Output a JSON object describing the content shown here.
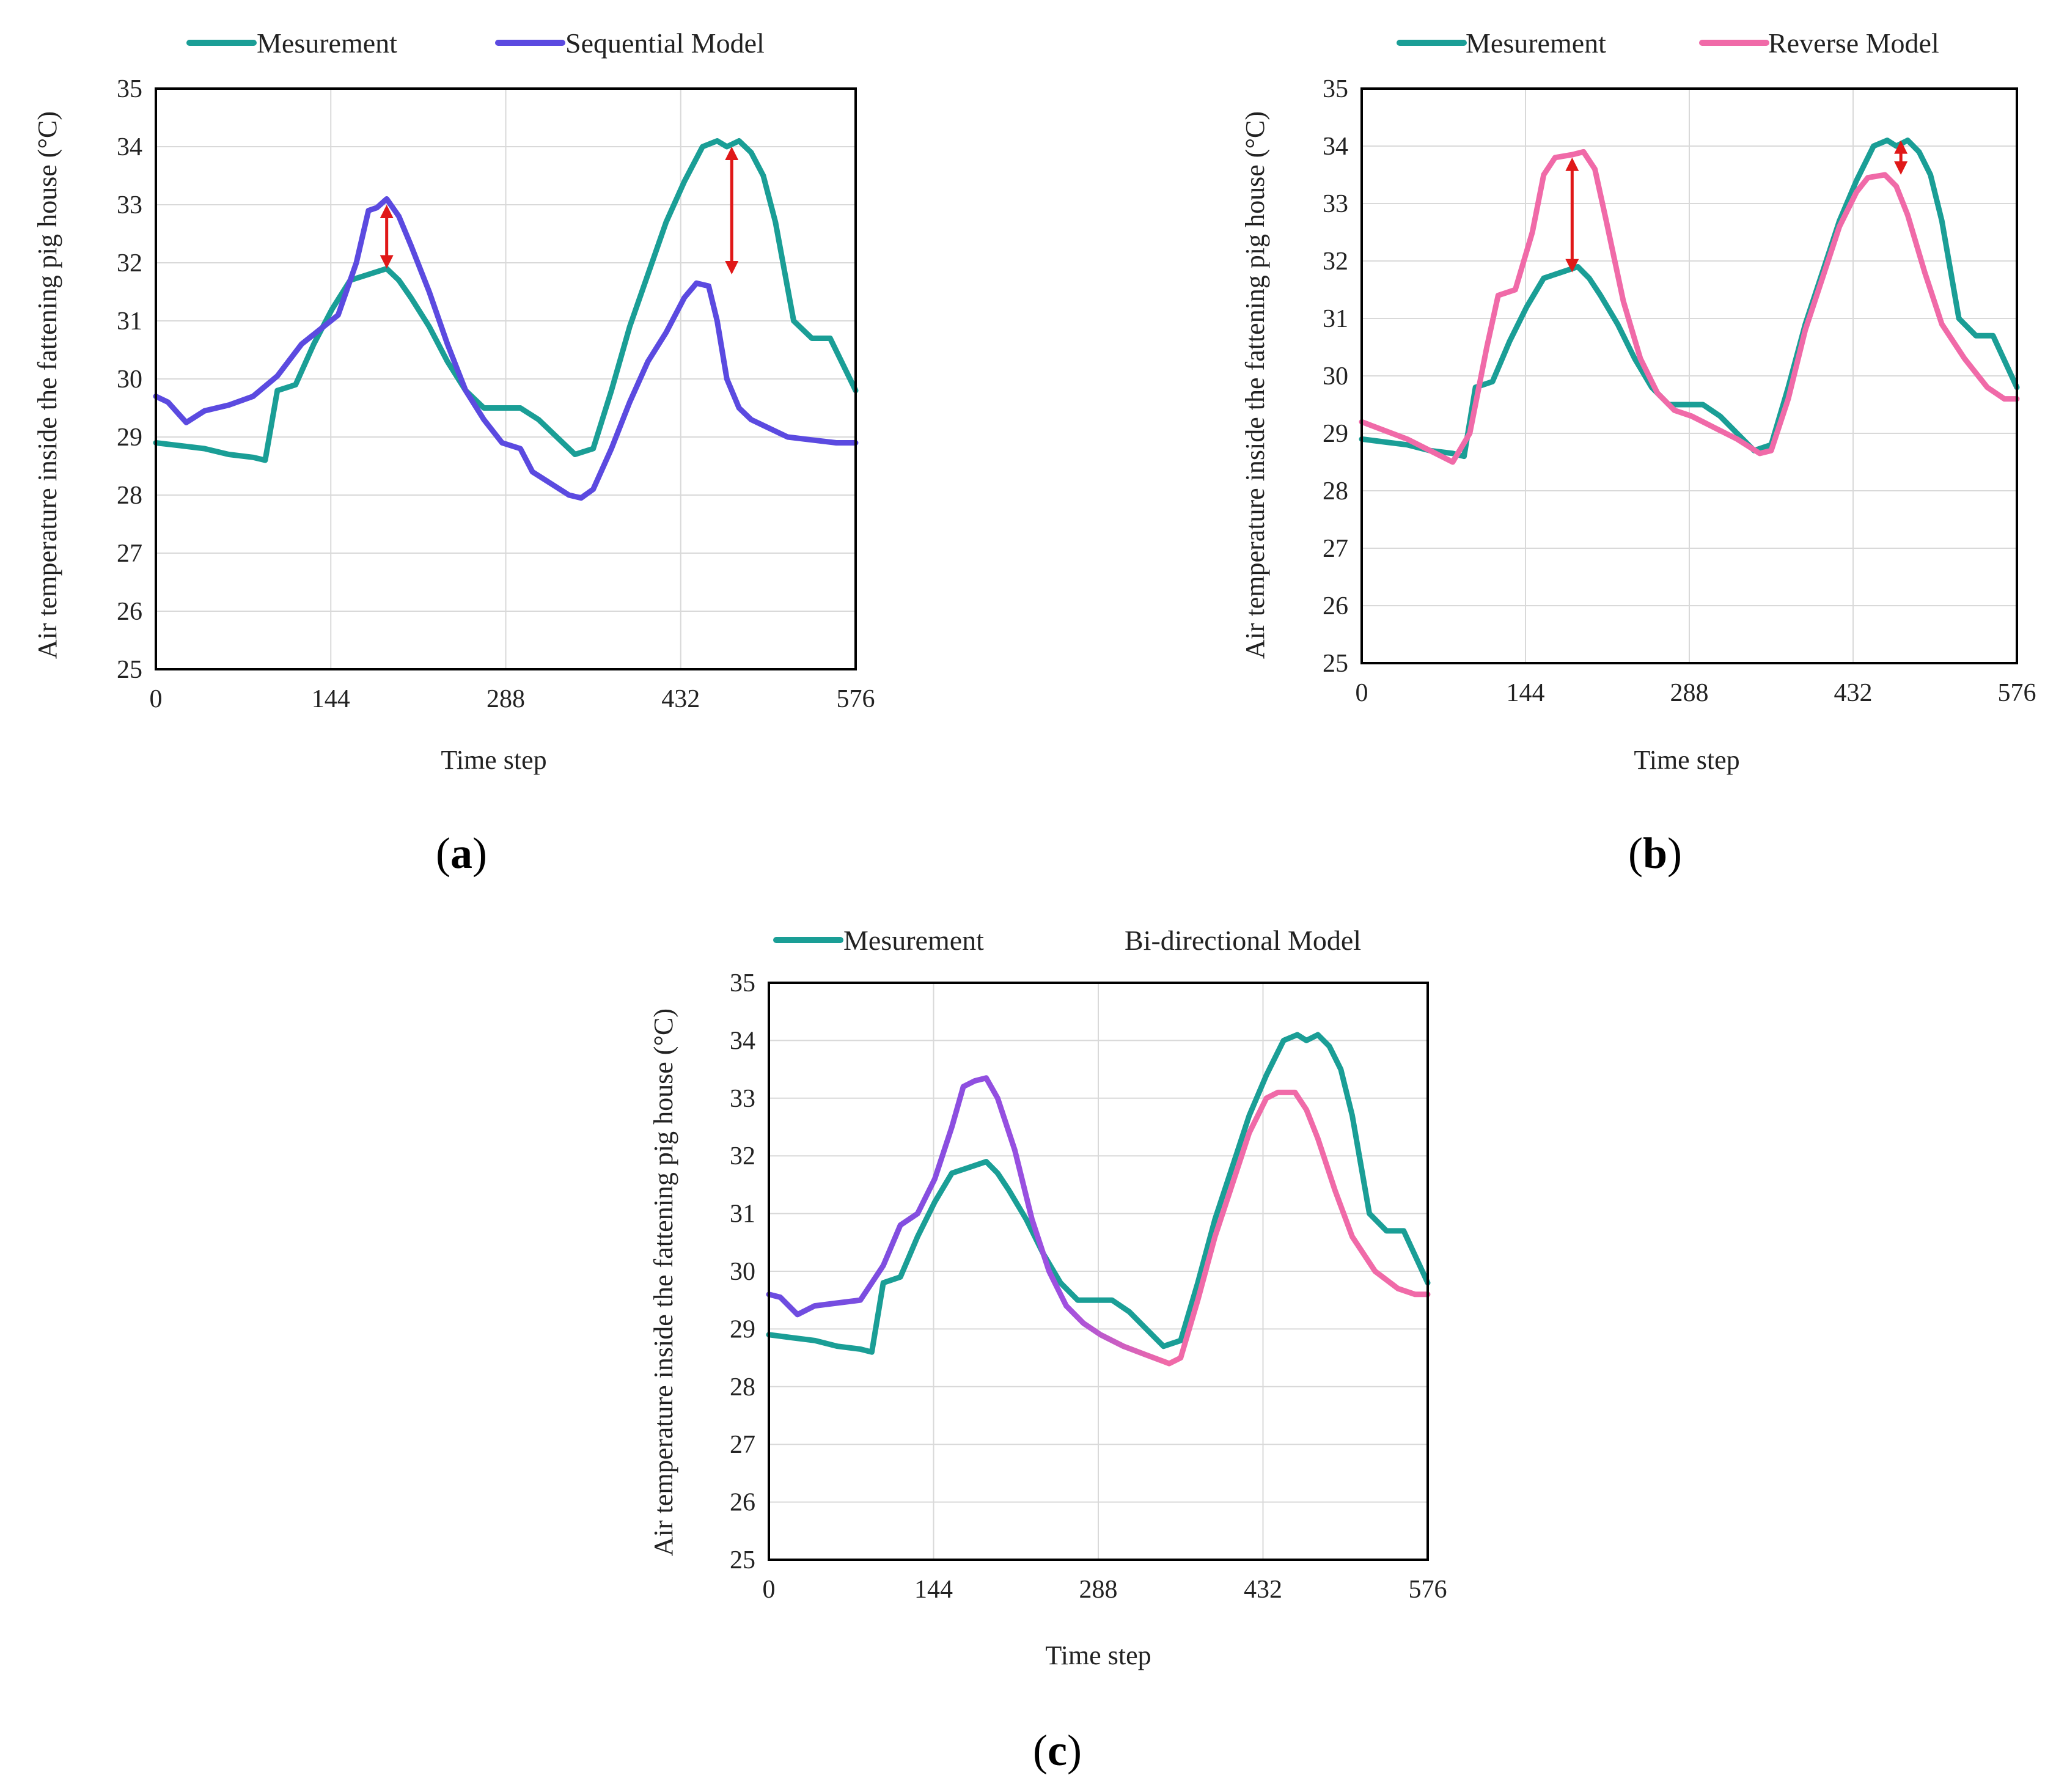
{
  "colors": {
    "measurement": "#1a9e96",
    "sequential": "#5b4ae0",
    "reverse": "#f06aa8",
    "bidirectional_start": "#6a4ce0",
    "bidirectional_end": "#f06aa8",
    "arrow": "#e01818"
  },
  "chart_data": [
    {
      "id": "a",
      "type": "line",
      "caption_letter": "a",
      "xlabel": "Time step",
      "ylabel": "Air temperature inside the fattening pig house (°C)",
      "xlim": [
        0,
        576
      ],
      "ylim": [
        25,
        35
      ],
      "xticks": [
        "0",
        "144",
        "288",
        "432",
        "576"
      ],
      "yticks": [
        "25",
        "26",
        "27",
        "28",
        "29",
        "30",
        "31",
        "32",
        "33",
        "34",
        "35"
      ],
      "legend": [
        "Mesurement",
        "Sequential Model"
      ],
      "series": [
        {
          "name": "Mesurement",
          "color": "measurement",
          "x": [
            0,
            20,
            40,
            60,
            80,
            90,
            100,
            115,
            130,
            145,
            160,
            175,
            190,
            200,
            210,
            225,
            240,
            255,
            270,
            285,
            300,
            315,
            330,
            345,
            360,
            375,
            390,
            405,
            420,
            435,
            450,
            462,
            470,
            480,
            490,
            500,
            510,
            525,
            540,
            555,
            576
          ],
          "values": [
            28.9,
            28.85,
            28.8,
            28.7,
            28.65,
            28.6,
            29.8,
            29.9,
            30.6,
            31.2,
            31.7,
            31.8,
            31.9,
            31.7,
            31.4,
            30.9,
            30.3,
            29.8,
            29.5,
            29.5,
            29.5,
            29.3,
            29.0,
            28.7,
            28.8,
            29.8,
            30.9,
            31.8,
            32.7,
            33.4,
            34.0,
            34.1,
            34.0,
            34.1,
            33.9,
            33.5,
            32.7,
            31.0,
            30.7,
            30.7,
            29.8
          ]
        },
        {
          "name": "Sequential Model",
          "color": "sequential",
          "x": [
            0,
            10,
            25,
            40,
            60,
            80,
            100,
            120,
            135,
            150,
            165,
            175,
            182,
            190,
            200,
            210,
            225,
            240,
            255,
            270,
            285,
            300,
            310,
            325,
            340,
            350,
            360,
            375,
            390,
            405,
            420,
            435,
            445,
            455,
            462,
            470,
            480,
            490,
            505,
            520,
            540,
            560,
            576
          ],
          "values": [
            29.7,
            29.6,
            29.25,
            29.45,
            29.55,
            29.7,
            30.05,
            30.6,
            30.85,
            31.1,
            32.0,
            32.9,
            32.95,
            33.1,
            32.8,
            32.3,
            31.5,
            30.6,
            29.8,
            29.3,
            28.9,
            28.8,
            28.4,
            28.2,
            28.0,
            27.95,
            28.1,
            28.8,
            29.6,
            30.3,
            30.8,
            31.4,
            31.65,
            31.6,
            31.0,
            30.0,
            29.5,
            29.3,
            29.15,
            29.0,
            28.95,
            28.9,
            28.9
          ]
        }
      ],
      "annotations": [
        {
          "kind": "double-arrow",
          "x": 190,
          "y_from": 31.9,
          "y_to": 33.0
        },
        {
          "kind": "double-arrow",
          "x": 474,
          "y_from": 31.8,
          "y_to": 34.0
        }
      ]
    },
    {
      "id": "b",
      "type": "line",
      "caption_letter": "b",
      "xlabel": "Time step",
      "ylabel": "Air temperature inside the fattening pig house (°C)",
      "xlim": [
        0,
        576
      ],
      "ylim": [
        25,
        35
      ],
      "xticks": [
        "0",
        "144",
        "288",
        "432",
        "576"
      ],
      "yticks": [
        "25",
        "26",
        "27",
        "28",
        "29",
        "30",
        "31",
        "32",
        "33",
        "34",
        "35"
      ],
      "legend": [
        "Mesurement",
        "Reverse Model"
      ],
      "series": [
        {
          "name": "Mesurement",
          "color": "measurement",
          "x": [
            0,
            20,
            40,
            60,
            80,
            90,
            100,
            115,
            130,
            145,
            160,
            175,
            190,
            200,
            210,
            225,
            240,
            255,
            270,
            285,
            300,
            315,
            330,
            345,
            360,
            375,
            390,
            405,
            420,
            435,
            450,
            462,
            470,
            480,
            490,
            500,
            510,
            525,
            540,
            555,
            576
          ],
          "values": [
            28.9,
            28.85,
            28.8,
            28.7,
            28.65,
            28.6,
            29.8,
            29.9,
            30.6,
            31.2,
            31.7,
            31.8,
            31.9,
            31.7,
            31.4,
            30.9,
            30.3,
            29.8,
            29.5,
            29.5,
            29.5,
            29.3,
            29.0,
            28.7,
            28.8,
            29.8,
            30.9,
            31.8,
            32.7,
            33.4,
            34.0,
            34.1,
            34.0,
            34.1,
            33.9,
            33.5,
            32.7,
            31.0,
            30.7,
            30.7,
            29.8
          ]
        },
        {
          "name": "Reverse Model",
          "color": "reverse",
          "x": [
            0,
            20,
            40,
            60,
            80,
            95,
            110,
            120,
            135,
            150,
            160,
            170,
            185,
            195,
            205,
            215,
            230,
            245,
            260,
            275,
            290,
            310,
            330,
            350,
            360,
            375,
            390,
            405,
            420,
            435,
            445,
            460,
            470,
            480,
            495,
            510,
            530,
            550,
            565,
            576
          ],
          "values": [
            29.2,
            29.05,
            28.9,
            28.7,
            28.5,
            29.0,
            30.5,
            31.4,
            31.5,
            32.5,
            33.5,
            33.8,
            33.85,
            33.9,
            33.6,
            32.7,
            31.3,
            30.3,
            29.7,
            29.4,
            29.3,
            29.1,
            28.9,
            28.65,
            28.7,
            29.6,
            30.8,
            31.7,
            32.6,
            33.2,
            33.45,
            33.5,
            33.3,
            32.8,
            31.8,
            30.9,
            30.3,
            29.8,
            29.6,
            29.6
          ]
        }
      ],
      "annotations": [
        {
          "kind": "double-arrow",
          "x": 185,
          "y_from": 31.8,
          "y_to": 33.8
        },
        {
          "kind": "double-arrow",
          "x": 474,
          "y_from": 33.5,
          "y_to": 34.1
        }
      ]
    },
    {
      "id": "c",
      "type": "line",
      "caption_letter": "c",
      "xlabel": "Time step",
      "ylabel": "Air temperature inside the fattening pig house (°C)",
      "xlim": [
        0,
        576
      ],
      "ylim": [
        25,
        35
      ],
      "xticks": [
        "0",
        "144",
        "288",
        "432",
        "576"
      ],
      "yticks": [
        "25",
        "26",
        "27",
        "28",
        "29",
        "30",
        "31",
        "32",
        "33",
        "34",
        "35"
      ],
      "legend": [
        "Mesurement",
        "Bi-directional Model"
      ],
      "series": [
        {
          "name": "Mesurement",
          "color": "measurement",
          "x": [
            0,
            20,
            40,
            60,
            80,
            90,
            100,
            115,
            130,
            145,
            160,
            175,
            190,
            200,
            210,
            225,
            240,
            255,
            270,
            285,
            300,
            315,
            330,
            345,
            360,
            375,
            390,
            405,
            420,
            435,
            450,
            462,
            470,
            480,
            490,
            500,
            510,
            525,
            540,
            555,
            576
          ],
          "values": [
            28.9,
            28.85,
            28.8,
            28.7,
            28.65,
            28.6,
            29.8,
            29.9,
            30.6,
            31.2,
            31.7,
            31.8,
            31.9,
            31.7,
            31.4,
            30.9,
            30.3,
            29.8,
            29.5,
            29.5,
            29.5,
            29.3,
            29.0,
            28.7,
            28.8,
            29.8,
            30.9,
            31.8,
            32.7,
            33.4,
            34.0,
            34.1,
            34.0,
            34.1,
            33.9,
            33.5,
            32.7,
            31.0,
            30.7,
            30.7,
            29.8
          ]
        },
        {
          "name": "Bi-directional Model",
          "color": "bidirectional",
          "x": [
            0,
            10,
            25,
            40,
            60,
            80,
            100,
            115,
            130,
            145,
            160,
            170,
            180,
            190,
            200,
            215,
            230,
            245,
            260,
            275,
            290,
            310,
            330,
            350,
            360,
            375,
            390,
            405,
            420,
            435,
            445,
            460,
            470,
            480,
            495,
            510,
            530,
            550,
            565,
            576
          ],
          "values": [
            29.6,
            29.55,
            29.25,
            29.4,
            29.45,
            29.5,
            30.1,
            30.8,
            31.0,
            31.6,
            32.5,
            33.2,
            33.3,
            33.35,
            33.0,
            32.1,
            30.9,
            30.0,
            29.4,
            29.1,
            28.9,
            28.7,
            28.55,
            28.4,
            28.5,
            29.5,
            30.6,
            31.5,
            32.4,
            33.0,
            33.1,
            33.1,
            32.8,
            32.3,
            31.4,
            30.6,
            30.0,
            29.7,
            29.6,
            29.6
          ]
        }
      ],
      "annotations": []
    }
  ]
}
